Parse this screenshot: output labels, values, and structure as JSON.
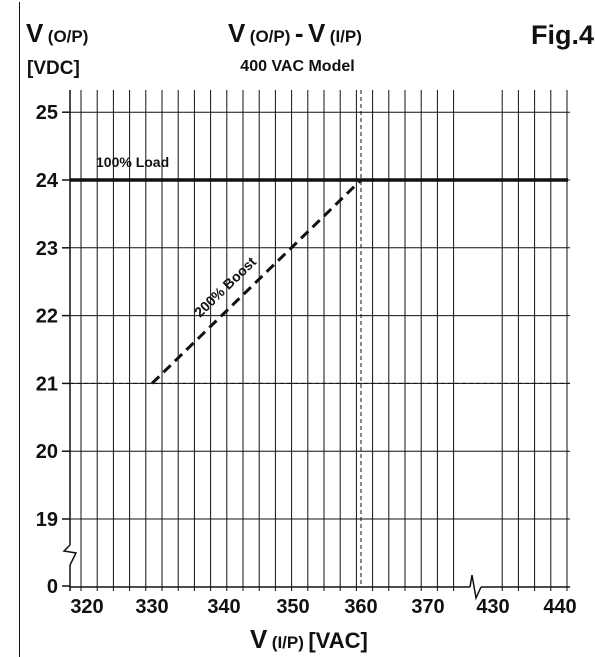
{
  "figure": {
    "label": "Fig.4",
    "title_main": "V",
    "title_sub_left": "(O/P)",
    "title_dash": "-",
    "title_main2": "V",
    "title_sub_right": "(I/P)",
    "subtitle": "400 VAC Model",
    "y_axis_main": "V",
    "y_axis_sub": "(O/P)",
    "y_axis_unit": "[VDC]",
    "x_axis_main": "V",
    "x_axis_sub": "(I/P)",
    "x_axis_unit": "[VAC]"
  },
  "chart_data": {
    "type": "line",
    "xlabel": "V (I/P) [VAC]",
    "ylabel": "V (O/P) [VDC]",
    "x_ticks": [
      "320",
      "330",
      "340",
      "350",
      "360",
      "370",
      "430",
      "440"
    ],
    "x_tick_values": [
      320,
      330,
      340,
      350,
      360,
      370,
      430,
      440
    ],
    "y_ticks": [
      "0",
      "19",
      "20",
      "21",
      "22",
      "23",
      "24",
      "25"
    ],
    "y_tick_values": [
      0,
      19,
      20,
      21,
      22,
      23,
      24,
      25
    ],
    "x_axis_break": "between 370 and 430",
    "y_axis_break": "between 0 and 19",
    "grid": true,
    "series": [
      {
        "name": "100% Load",
        "style": "solid",
        "x": [
          320,
          440
        ],
        "y": [
          24,
          24
        ]
      },
      {
        "name": "200% Boost",
        "style": "dashed",
        "x": [
          330,
          360
        ],
        "y": [
          21,
          24
        ]
      }
    ],
    "reference_lines": [
      {
        "orientation": "vertical",
        "x": 360,
        "style": "dashed"
      },
      {
        "orientation": "horizontal",
        "y": 21,
        "style": "dashed"
      }
    ]
  },
  "colors": {
    "ink": "#111111",
    "background": "#ffffff"
  }
}
